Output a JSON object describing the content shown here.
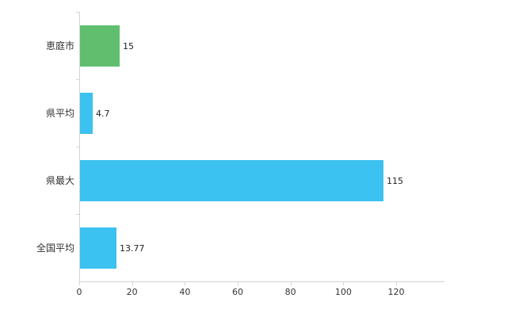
{
  "chart_data": {
    "type": "bar",
    "orientation": "horizontal",
    "title": "",
    "xlabel": "",
    "ylabel": "",
    "categories": [
      "恵庭市",
      "県平均",
      "県最大",
      "全国平均"
    ],
    "values": [
      15,
      4.7,
      115,
      13.77
    ],
    "value_labels": [
      "15",
      "4.7",
      "115",
      "13.77"
    ],
    "bar_colors": [
      "#5fbf6e",
      "#3cc2f0",
      "#3cc2f0",
      "#3cc2f0"
    ],
    "x_ticks": [
      0,
      20,
      40,
      60,
      80,
      100,
      120
    ],
    "xlim": [
      0,
      138
    ],
    "grid": false,
    "legend": false
  },
  "style": {
    "axis_color": "#d3d3d3",
    "label_color": "#333333",
    "value_color": "#222222",
    "background": "#ffffff"
  }
}
